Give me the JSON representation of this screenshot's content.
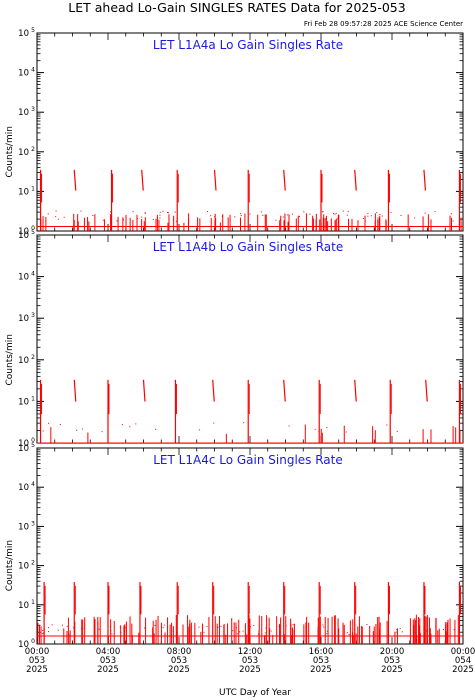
{
  "title": "LET ahead Lo-Gain SINGLES RATES Data for 2025-053",
  "timestamp": "Fri Feb 28 09:57:28 2025 ACE Science Center",
  "xlabel": "UTC Day of Year",
  "ylabel": "Counts/min",
  "colors": {
    "data": "#ff0000",
    "panel_title": "#1a1ae6",
    "axes": "#000000"
  },
  "chart_data": [
    {
      "type": "line",
      "title": "LET L1A4a Lo Gain Singles Rate",
      "ylabel": "Counts/min",
      "yscale": "log",
      "ylim": [
        1,
        100000
      ],
      "xlim": [
        0,
        24
      ],
      "y_ticks": [
        "10",
        "10",
        "10",
        "10",
        "10",
        "10"
      ],
      "y_tick_exponents": [
        "0",
        "1",
        "2",
        "3",
        "4",
        "5"
      ],
      "spike_times": [
        0.2,
        2.1,
        4.2,
        5.9,
        7.9,
        10.0,
        11.9,
        13.9,
        16.0,
        17.9,
        19.8,
        21.8,
        23.8
      ],
      "spike_peak": 35,
      "baseline": 1.3
    },
    {
      "type": "line",
      "title": "LET L1A4b Lo Gain Singles Rate",
      "ylabel": "Counts/min",
      "yscale": "log",
      "ylim": [
        1,
        100000
      ],
      "xlim": [
        0,
        24
      ],
      "y_ticks": [
        "10",
        "10",
        "10",
        "10",
        "10",
        "10"
      ],
      "y_tick_exponents": [
        "0",
        "1",
        "2",
        "3",
        "4",
        "5"
      ],
      "spike_times": [
        0.2,
        2.1,
        4.0,
        6.0,
        7.8,
        9.9,
        11.9,
        13.9,
        15.9,
        17.9,
        19.9,
        21.9,
        23.8
      ],
      "spike_peak": 33,
      "baseline": 1.0
    },
    {
      "type": "line",
      "title": "LET L1A4c Lo Gain Singles Rate",
      "ylabel": "Counts/min",
      "yscale": "log",
      "ylim": [
        1,
        100000
      ],
      "xlim": [
        0,
        24
      ],
      "y_ticks": [
        "10",
        "10",
        "10",
        "10",
        "10",
        "10"
      ],
      "y_tick_exponents": [
        "0",
        "1",
        "2",
        "3",
        "4",
        "5"
      ],
      "spike_times": [
        0.4,
        2.1,
        4.0,
        5.8,
        7.9,
        9.9,
        11.9,
        13.9,
        15.9,
        17.9,
        19.8,
        21.8,
        23.8
      ],
      "spike_peak": 38,
      "baseline": 1.6
    }
  ],
  "x_axis": {
    "ticks": [
      {
        "value": 0,
        "time": "00:00",
        "doy": "053",
        "year": "2025"
      },
      {
        "value": 4,
        "time": "04:00",
        "doy": "053",
        "year": "2025"
      },
      {
        "value": 8,
        "time": "08:00",
        "doy": "053",
        "year": "2025"
      },
      {
        "value": 12,
        "time": "12:00",
        "doy": "053",
        "year": "2025"
      },
      {
        "value": 16,
        "time": "16:00",
        "doy": "053",
        "year": "2025"
      },
      {
        "value": 20,
        "time": "20:00",
        "doy": "053",
        "year": "2025"
      },
      {
        "value": 24,
        "time": "00:00",
        "doy": "054",
        "year": "2025"
      }
    ]
  }
}
